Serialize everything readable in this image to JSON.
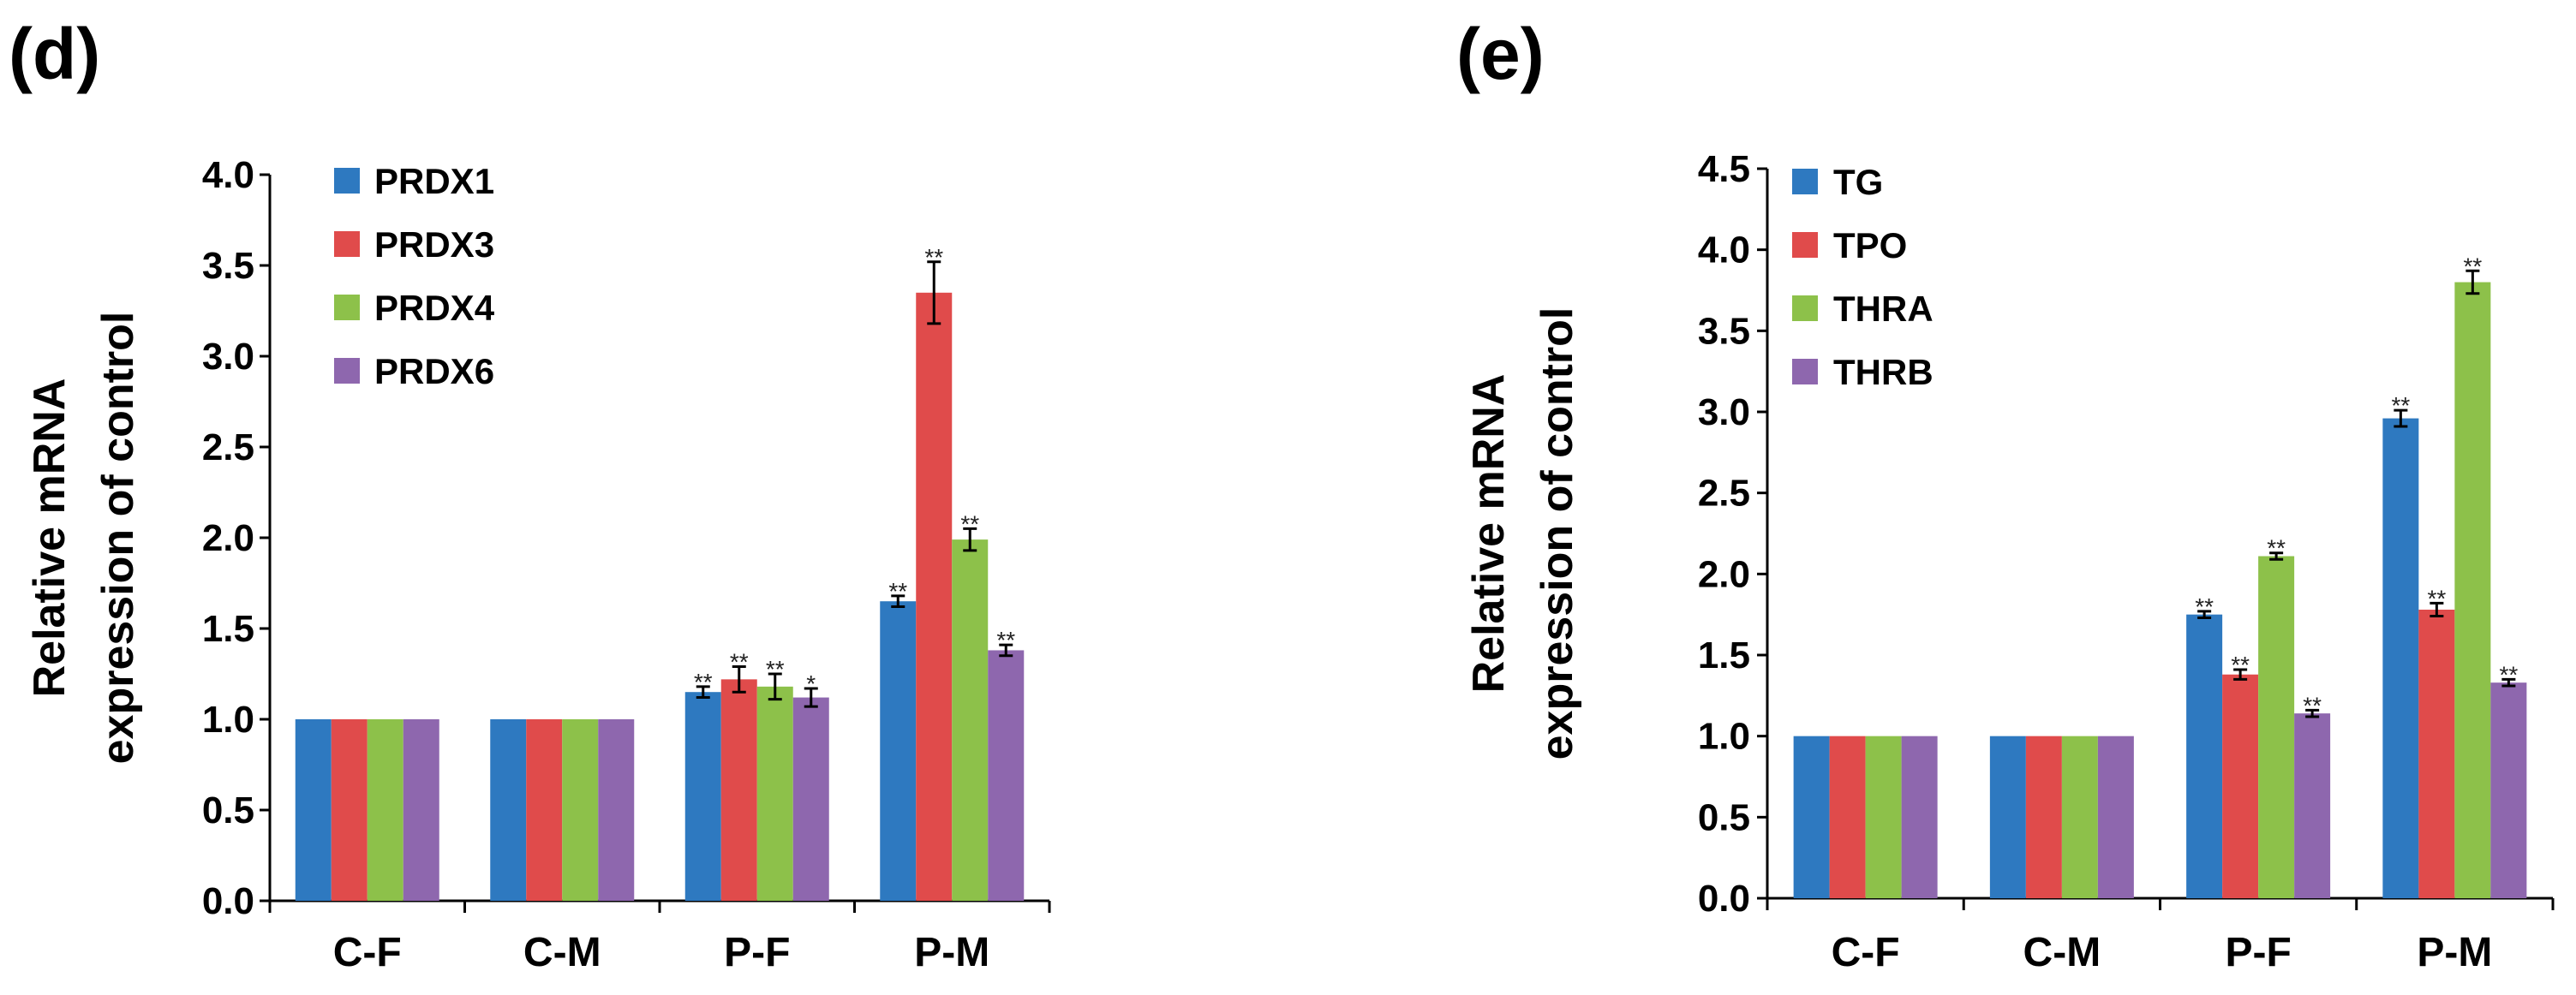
{
  "chart_data": [
    {
      "type": "bar",
      "panel_label": "(d)",
      "ylabel": [
        "Relative mRNA",
        "expression of control"
      ],
      "xlabel": "",
      "categories": [
        "C-F",
        "C-M",
        "P-F",
        "P-M"
      ],
      "ylim": [
        0,
        4.0
      ],
      "yticks": [
        0.0,
        0.5,
        1.0,
        1.5,
        2.0,
        2.5,
        3.0,
        3.5,
        4.0
      ],
      "ytick_labels": [
        "0.0",
        "0.5",
        "1.0",
        "1.5",
        "2.0",
        "2.5",
        "3.0",
        "3.5",
        "4.0"
      ],
      "legend_position": "top-left",
      "grid": false,
      "series": [
        {
          "name": "PRDX1",
          "color": "#2E79C0",
          "values": [
            1.0,
            1.0,
            1.15,
            1.65
          ],
          "errors": [
            0,
            0,
            0.03,
            0.03
          ],
          "sig": [
            "",
            "",
            "**",
            "**"
          ]
        },
        {
          "name": "PRDX3",
          "color": "#E04B4B",
          "values": [
            1.0,
            1.0,
            1.22,
            3.35
          ],
          "errors": [
            0,
            0,
            0.07,
            0.17
          ],
          "sig": [
            "",
            "",
            "**",
            "**"
          ]
        },
        {
          "name": "PRDX4",
          "color": "#8DC14A",
          "values": [
            1.0,
            1.0,
            1.18,
            1.99
          ],
          "errors": [
            0,
            0,
            0.07,
            0.06
          ],
          "sig": [
            "",
            "",
            "**",
            "**"
          ]
        },
        {
          "name": "PRDX6",
          "color": "#8E67AE",
          "values": [
            1.0,
            1.0,
            1.12,
            1.38
          ],
          "errors": [
            0,
            0,
            0.05,
            0.03
          ],
          "sig": [
            "",
            "",
            "*",
            "**"
          ]
        }
      ]
    },
    {
      "type": "bar",
      "panel_label": "(e)",
      "ylabel": [
        "Relative mRNA",
        "expression of control"
      ],
      "xlabel": "",
      "categories": [
        "C-F",
        "C-M",
        "P-F",
        "P-M"
      ],
      "ylim": [
        0,
        4.5
      ],
      "yticks": [
        0.0,
        0.5,
        1.0,
        1.5,
        2.0,
        2.5,
        3.0,
        3.5,
        4.0,
        4.5
      ],
      "ytick_labels": [
        "0.0",
        "0.5",
        "1.0",
        "1.5",
        "2.0",
        "2.5",
        "3.0",
        "3.5",
        "4.0",
        "4.5"
      ],
      "legend_position": "top-left",
      "grid": false,
      "series": [
        {
          "name": "TG",
          "color": "#2E79C0",
          "values": [
            1.0,
            1.0,
            1.75,
            2.96
          ],
          "errors": [
            0,
            0,
            0.02,
            0.05
          ],
          "sig": [
            "",
            "",
            "**",
            "**"
          ]
        },
        {
          "name": "TPO",
          "color": "#E04B4B",
          "values": [
            1.0,
            1.0,
            1.38,
            1.78
          ],
          "errors": [
            0,
            0,
            0.03,
            0.04
          ],
          "sig": [
            "",
            "",
            "**",
            "**"
          ]
        },
        {
          "name": "THRA",
          "color": "#8DC14A",
          "values": [
            1.0,
            1.0,
            2.11,
            3.8
          ],
          "errors": [
            0,
            0,
            0.02,
            0.07
          ],
          "sig": [
            "",
            "",
            "**",
            "**"
          ]
        },
        {
          "name": "THRB",
          "color": "#8E67AE",
          "values": [
            1.0,
            1.0,
            1.14,
            1.33
          ],
          "errors": [
            0,
            0,
            0.02,
            0.02
          ],
          "sig": [
            "",
            "",
            "**",
            "**"
          ]
        }
      ]
    }
  ]
}
